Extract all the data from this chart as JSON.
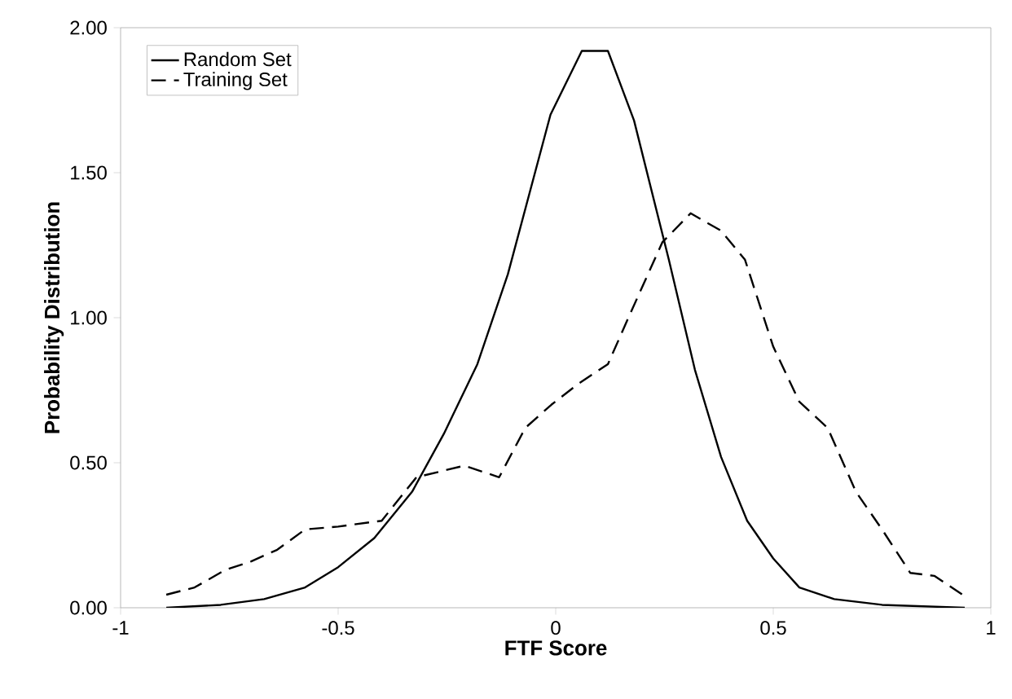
{
  "chart_data": {
    "type": "line",
    "xlabel": "FTF Score",
    "ylabel": "Probability Distribution",
    "xlim": [
      -1,
      1
    ],
    "ylim": [
      0,
      2
    ],
    "xticks": [
      -1,
      -0.5,
      0,
      0.5,
      1
    ],
    "yticks": [
      {
        "value": 0,
        "label": "0.00"
      },
      {
        "value": 0.5,
        "label": "0.50"
      },
      {
        "value": 1,
        "label": "1.00"
      },
      {
        "value": 1.5,
        "label": "1.50"
      },
      {
        "value": 2,
        "label": "2.00"
      }
    ],
    "grid": false,
    "legend": "top left",
    "series": [
      {
        "name": "Random Set",
        "color": "#000000",
        "line_style": "solid",
        "x": [
          -0.895,
          -0.77,
          -0.67,
          -0.576,
          -0.5,
          -0.417,
          -0.33,
          -0.257,
          -0.18,
          -0.11,
          -0.012,
          0.06,
          0.12,
          0.18,
          0.26,
          0.32,
          0.38,
          0.44,
          0.5,
          0.56,
          0.64,
          0.75,
          0.94
        ],
        "values": [
          0,
          0.01,
          0.03,
          0.07,
          0.14,
          0.24,
          0.4,
          0.6,
          0.84,
          1.15,
          1.7,
          1.92,
          1.92,
          1.68,
          1.2,
          0.82,
          0.52,
          0.3,
          0.17,
          0.07,
          0.03,
          0.01,
          0
        ]
      },
      {
        "name": "Training Set",
        "color": "#000000",
        "line_style": "dashed",
        "x": [
          -0.895,
          -0.83,
          -0.76,
          -0.7,
          -0.64,
          -0.576,
          -0.5,
          -0.4,
          -0.32,
          -0.21,
          -0.13,
          -0.07,
          -0.01,
          0.05,
          0.12,
          0.17,
          0.245,
          0.31,
          0.38,
          0.435,
          0.5,
          0.56,
          0.625,
          0.69,
          0.75,
          0.815,
          0.87,
          0.94
        ],
        "values": [
          0.045,
          0.07,
          0.13,
          0.16,
          0.2,
          0.27,
          0.28,
          0.3,
          0.45,
          0.49,
          0.45,
          0.62,
          0.7,
          0.77,
          0.84,
          1.01,
          1.26,
          1.36,
          1.3,
          1.2,
          0.9,
          0.71,
          0.62,
          0.4,
          0.27,
          0.12,
          0.11,
          0.04
        ]
      }
    ]
  }
}
